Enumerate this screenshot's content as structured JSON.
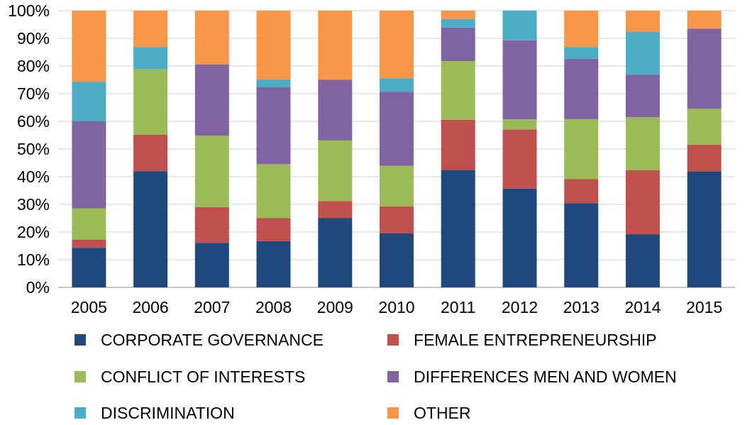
{
  "chart_data": {
    "type": "stacked-bar",
    "title": "",
    "xlabel": "",
    "ylabel": "",
    "ylim": [
      0,
      100
    ],
    "y_ticks": [
      "0%",
      "10%",
      "20%",
      "30%",
      "40%",
      "50%",
      "60%",
      "70%",
      "80%",
      "90%",
      "100%"
    ],
    "categories": [
      "2005",
      "2006",
      "2007",
      "2008",
      "2009",
      "2010",
      "2011",
      "2012",
      "2013",
      "2014",
      "2015"
    ],
    "series": [
      {
        "name": "CORPORATE GOVERNANCE",
        "color": "#1f497d",
        "values": [
          14.3,
          42.0,
          16.1,
          16.7,
          25.0,
          19.5,
          42.4,
          35.7,
          30.4,
          19.2,
          41.9
        ]
      },
      {
        "name": "FEMALE ENTREPRENEURSHIP",
        "color": "#c0504d",
        "values": [
          2.9,
          13.2,
          12.9,
          8.3,
          6.2,
          9.8,
          18.2,
          21.4,
          8.7,
          23.1,
          9.7
        ]
      },
      {
        "name": "CONFLICT OF INTERESTS",
        "color": "#9bbb59",
        "values": [
          11.4,
          23.7,
          25.8,
          19.5,
          21.9,
          14.6,
          21.2,
          3.6,
          21.7,
          19.2,
          12.9
        ]
      },
      {
        "name": "DIFFERENCES MEN AND WOMEN",
        "color": "#8064a2",
        "values": [
          31.4,
          0,
          25.8,
          27.8,
          21.9,
          26.8,
          12.1,
          28.6,
          21.8,
          15.4,
          29.0
        ]
      },
      {
        "name": "DISCRIMINATION",
        "color": "#4bacc6",
        "values": [
          14.3,
          7.9,
          0,
          2.8,
          0,
          4.9,
          3.1,
          10.7,
          4.3,
          15.4,
          0
        ]
      },
      {
        "name": "OTHER",
        "color": "#f79646",
        "values": [
          25.7,
          13.2,
          19.4,
          24.9,
          25.0,
          24.4,
          3.0,
          0,
          13.1,
          7.7,
          6.5
        ]
      }
    ],
    "legend": "bottom",
    "grid": true
  }
}
